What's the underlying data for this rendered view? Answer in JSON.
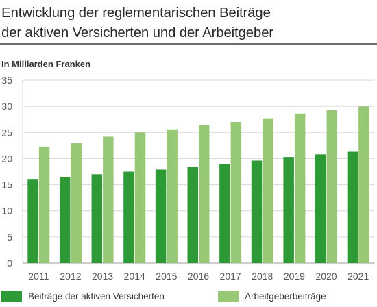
{
  "title_lines": [
    "Entwicklung der reglementarischen Beiträge",
    "der aktiven Versicherten und der Arbeitgeber"
  ],
  "unit_label": "In Milliarden Franken",
  "colors": {
    "series_1": "#2e9a36",
    "series_2": "#97c876",
    "grid": "#d8d8d8",
    "axis": "#9a9a9a"
  },
  "chart_data": {
    "type": "bar",
    "title": "Entwicklung der reglementarischen Beiträge der aktiven Versicherten und der Arbeitgeber",
    "ylabel": "In Milliarden Franken",
    "xlabel": "",
    "ylim": [
      0,
      35
    ],
    "yticks": [
      0,
      5,
      10,
      15,
      20,
      25,
      30,
      35
    ],
    "grid": true,
    "legend_position": "bottom",
    "categories": [
      "2011",
      "2012",
      "2013",
      "2014",
      "2015",
      "2016",
      "2017",
      "2018",
      "2019",
      "2020",
      "2021"
    ],
    "series": [
      {
        "name": "Beiträge der aktiven Versicherten",
        "values": [
          16.1,
          16.5,
          17.0,
          17.5,
          17.9,
          18.4,
          19.0,
          19.6,
          20.3,
          20.8,
          21.3
        ]
      },
      {
        "name": "Arbeitgeberbeiträge",
        "values": [
          22.3,
          23.0,
          24.2,
          25.0,
          25.6,
          26.4,
          27.0,
          27.7,
          28.6,
          29.3,
          30.0
        ]
      }
    ]
  }
}
